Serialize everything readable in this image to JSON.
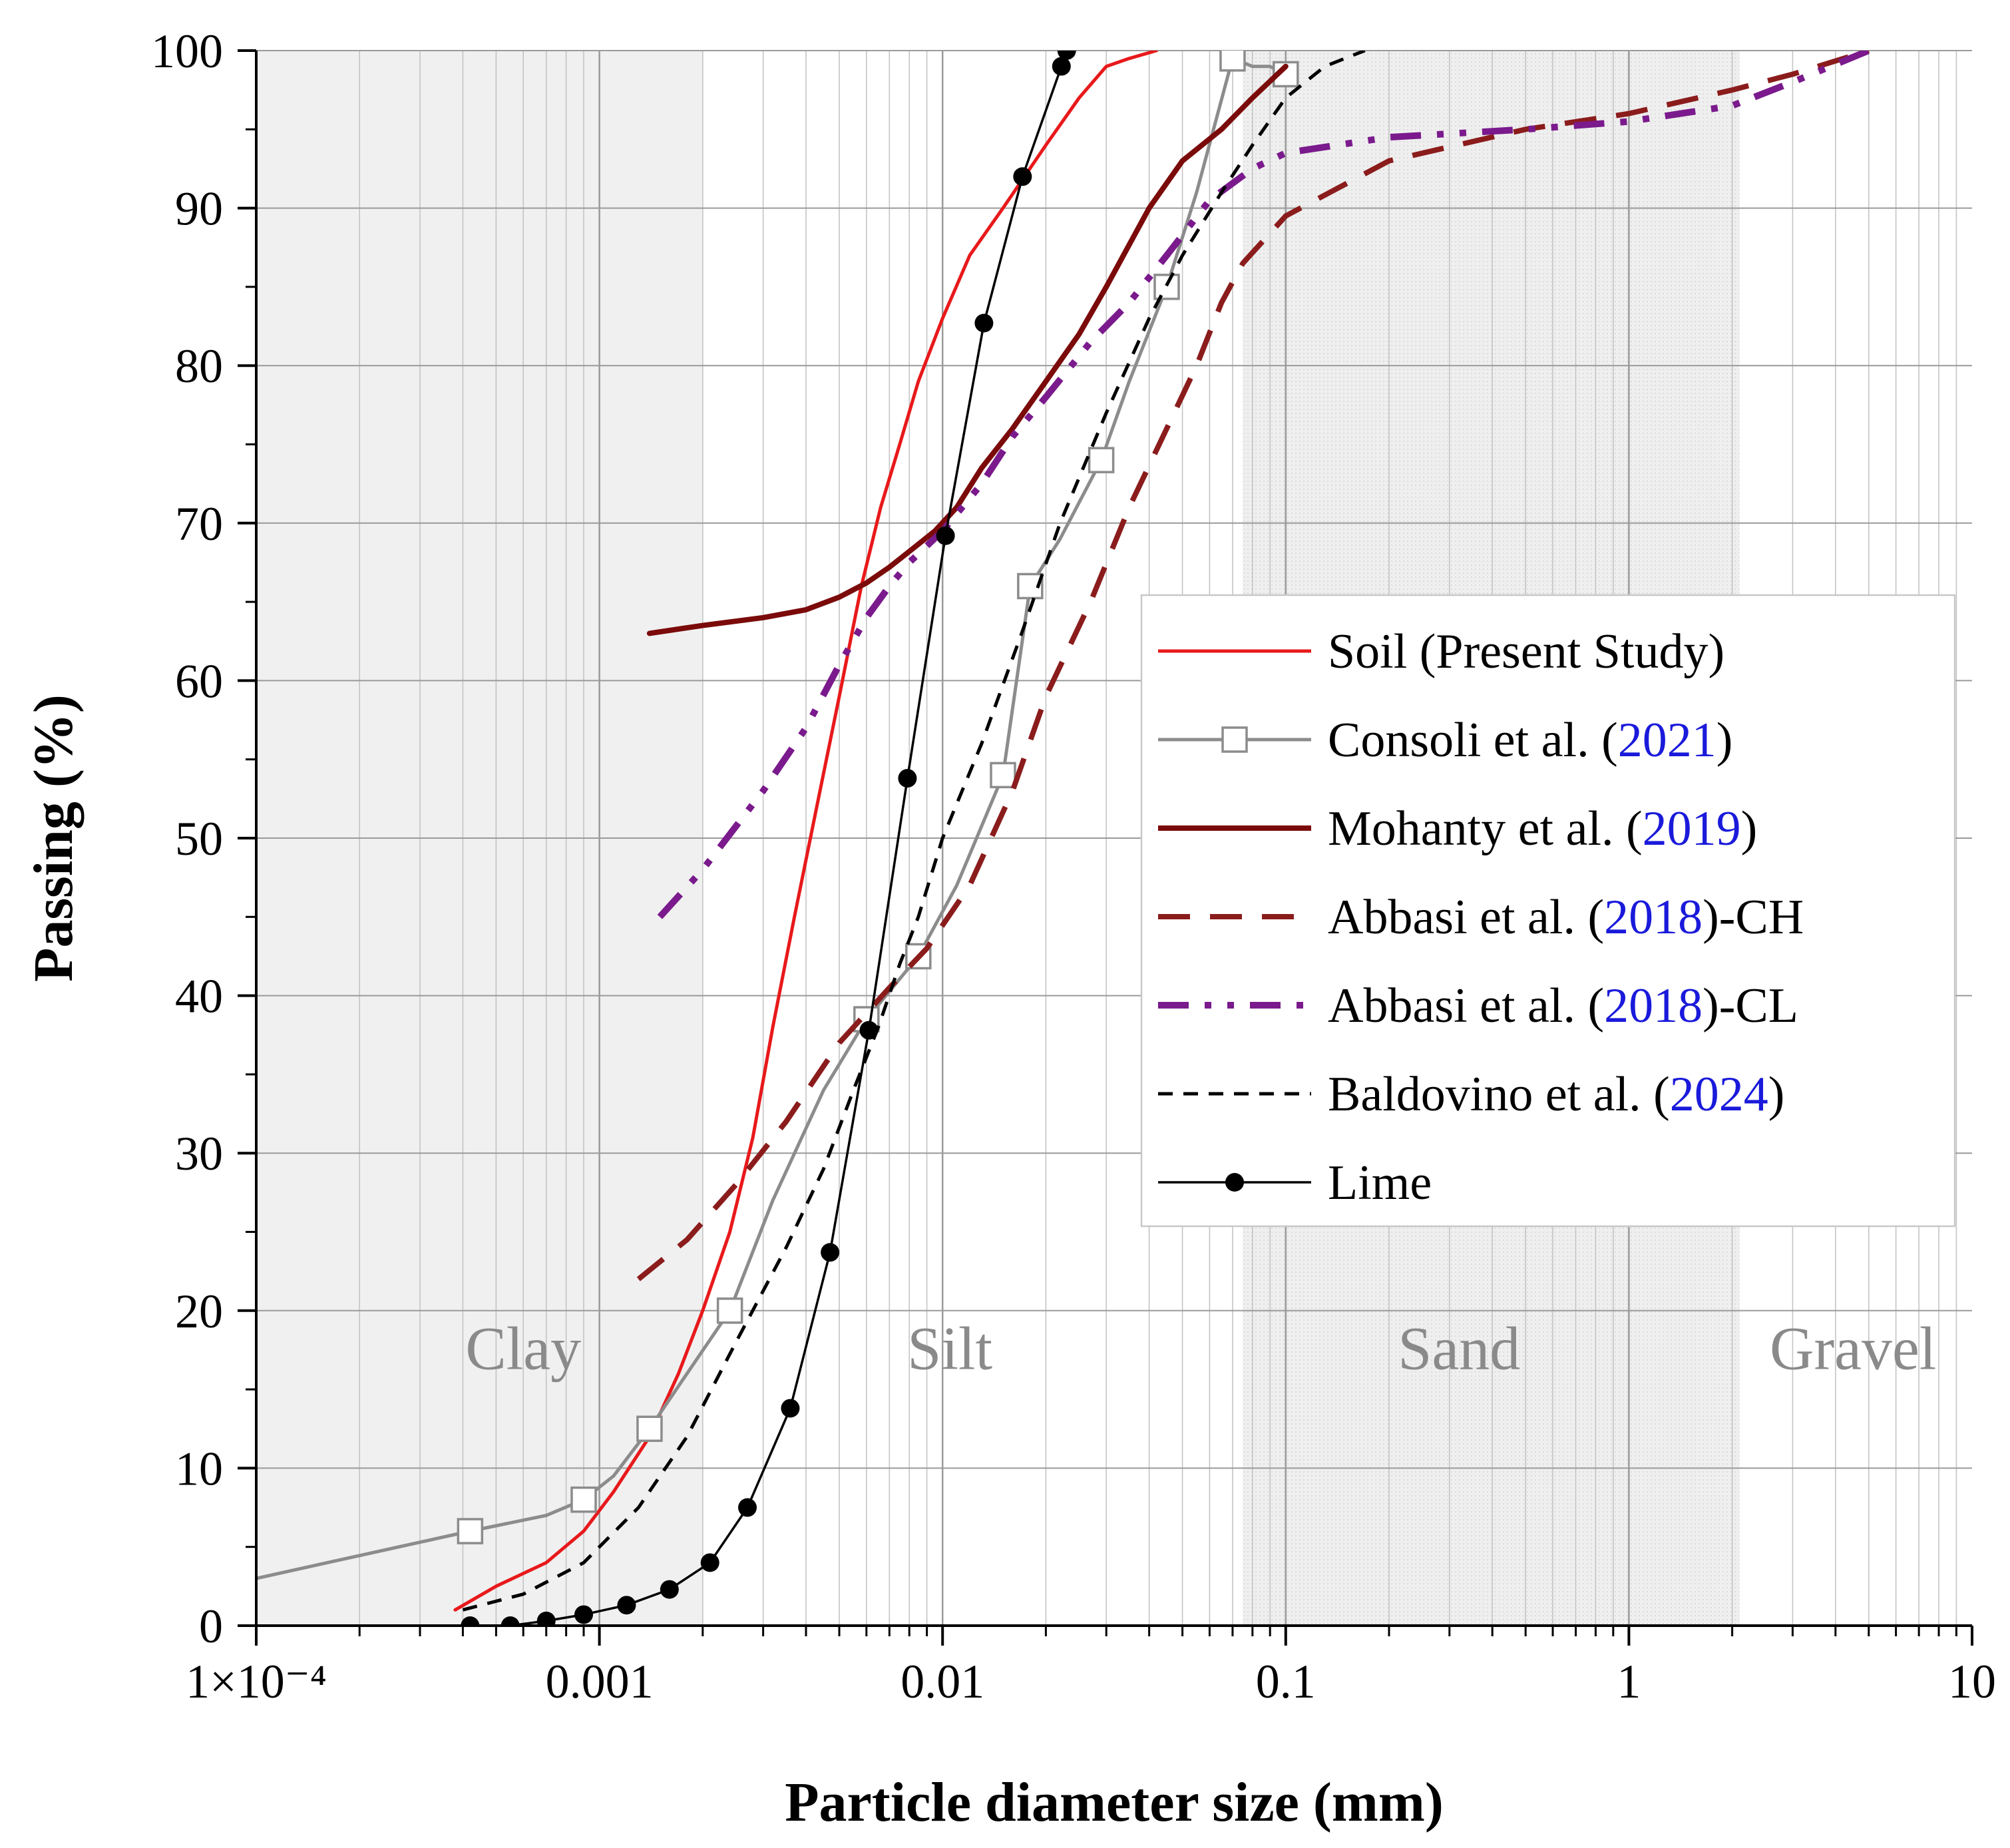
{
  "chart_data": {
    "type": "line",
    "xscale": "log",
    "xlabel": "Particle diameter size (mm)",
    "ylabel": "Passing (%)",
    "xlim": [
      0.0001,
      10
    ],
    "ylim": [
      0,
      100
    ],
    "xticks": [
      {
        "value": 0.0001,
        "label": "1×10⁻⁴"
      },
      {
        "value": 0.001,
        "label": "0.001"
      },
      {
        "value": 0.01,
        "label": "0.01"
      },
      {
        "value": 0.1,
        "label": "0.1"
      },
      {
        "value": 1,
        "label": "1"
      },
      {
        "value": 10,
        "label": "10"
      }
    ],
    "yticks": [
      0,
      10,
      20,
      30,
      40,
      50,
      60,
      70,
      80,
      90,
      100
    ],
    "grid": true,
    "zones": [
      {
        "name": "Clay",
        "from": 0.0001,
        "to": 0.002,
        "shaded": true,
        "label_at": 0.0006
      },
      {
        "name": "Silt",
        "from": 0.002,
        "to": 0.075,
        "shaded": false,
        "label_at": 0.0105
      },
      {
        "name": "Sand",
        "from": 0.075,
        "to": 2.1,
        "shaded": true,
        "label_at": 0.32
      },
      {
        "name": "Gravel",
        "from": 2.1,
        "to": 10,
        "shaded": false,
        "label_at": 4.5
      }
    ],
    "series": [
      {
        "name": "Soil (Present Study)",
        "label_pre": "Soil (Present Study)",
        "label_year": "",
        "label_post": "",
        "color": "#e8191b",
        "style": "solid",
        "width": 5,
        "marker": "none",
        "x": [
          0.00038,
          0.0005,
          0.0007,
          0.0009,
          0.0011,
          0.0014,
          0.0017,
          0.002,
          0.0024,
          0.0028,
          0.0032,
          0.0037,
          0.0043,
          0.005,
          0.0058,
          0.0066,
          0.0075,
          0.0085,
          0.01,
          0.012,
          0.015,
          0.02,
          0.025,
          0.03,
          0.035,
          0.042
        ],
        "y": [
          1,
          2.5,
          4,
          6,
          8.5,
          12,
          16,
          20,
          25,
          31,
          38,
          45,
          52,
          59,
          66,
          71,
          75,
          79,
          83,
          87,
          90,
          94,
          97,
          99,
          99.5,
          100
        ]
      },
      {
        "name": "Consoli et al. (2021)",
        "label_pre": "Consoli et al. (",
        "label_year": "2021",
        "label_post": ")",
        "color": "#8c8c8c",
        "style": "solid",
        "width": 5,
        "marker": "open-square",
        "x": [
          0.0001,
          0.00042,
          0.0007,
          0.0009,
          0.0011,
          0.0014,
          0.0018,
          0.0024,
          0.0032,
          0.0045,
          0.006,
          0.0085,
          0.011,
          0.015,
          0.018,
          0.022,
          0.029,
          0.035,
          0.045,
          0.055,
          0.07,
          0.08,
          0.09,
          0.1
        ],
        "y": [
          3,
          6,
          7,
          8,
          9.5,
          12.5,
          16,
          20,
          27,
          34,
          38.5,
          42.5,
          47,
          54,
          66,
          69,
          74,
          79,
          85,
          91,
          99.5,
          99,
          99,
          98.5
        ],
        "markers_x": [
          0.00042,
          0.0009,
          0.0014,
          0.0024,
          0.006,
          0.0085,
          0.015,
          0.018,
          0.029,
          0.045,
          0.07,
          0.1
        ],
        "markers_y": [
          6,
          8,
          12.5,
          20,
          38.5,
          42.5,
          54,
          66,
          74,
          85,
          99.5,
          98.5
        ]
      },
      {
        "name": "Mohanty et al. (2019)",
        "label_pre": "Mohanty et al. (",
        "label_year": "2019",
        "label_post": ")",
        "color": "#7b0a0a",
        "style": "solid",
        "width": 8,
        "marker": "none",
        "x": [
          0.0014,
          0.002,
          0.003,
          0.004,
          0.005,
          0.006,
          0.007,
          0.008,
          0.0095,
          0.011,
          0.013,
          0.016,
          0.02,
          0.025,
          0.03,
          0.04,
          0.05,
          0.065,
          0.08,
          0.1
        ],
        "y": [
          63,
          63.5,
          64,
          64.5,
          65.3,
          66.2,
          67.2,
          68.2,
          69.5,
          71,
          73.5,
          76,
          79,
          82,
          85,
          90,
          93,
          95,
          97,
          99
        ]
      },
      {
        "name": "Abbasi et al. (2018)-CH",
        "label_pre": "Abbasi et al. (",
        "label_year": "2018",
        "label_post": ")-CH",
        "color": "#8b1c1c",
        "style": "long-dash",
        "width": 8,
        "marker": "none",
        "x": [
          0.0013,
          0.0018,
          0.0025,
          0.0035,
          0.005,
          0.007,
          0.009,
          0.012,
          0.016,
          0.02,
          0.027,
          0.035,
          0.045,
          0.055,
          0.065,
          0.075,
          0.1,
          0.2,
          0.5,
          1,
          2,
          3,
          5
        ],
        "y": [
          22,
          24.5,
          28,
          32,
          37,
          40.5,
          43,
          47,
          53,
          59,
          65,
          71,
          76,
          80,
          84,
          86.5,
          89.5,
          93,
          95,
          96,
          97.5,
          98.5,
          100
        ]
      },
      {
        "name": "Abbasi et al. (2018)-CL",
        "label_pre": "Abbasi et al. (",
        "label_year": "2018",
        "label_post": ")-CL",
        "color": "#7a1a8c",
        "style": "dash-dot-dot",
        "width": 10,
        "marker": "none",
        "x": [
          0.0015,
          0.002,
          0.003,
          0.004,
          0.005,
          0.006,
          0.007,
          0.008,
          0.01,
          0.013,
          0.016,
          0.02,
          0.027,
          0.035,
          0.045,
          0.06,
          0.08,
          0.1,
          0.2,
          0.5,
          1,
          2,
          3,
          5
        ],
        "y": [
          45,
          48,
          53,
          57,
          61,
          64,
          66,
          67.5,
          69.5,
          72.5,
          75.5,
          78,
          81.5,
          84,
          87,
          90.5,
          92.5,
          93.5,
          94.5,
          95,
          95.5,
          96.5,
          98,
          100
        ]
      },
      {
        "name": "Baldovino et al. (2024)",
        "label_pre": "Baldovino et al. (",
        "label_year": "2024",
        "label_post": ")",
        "color": "#000000",
        "style": "short-dash",
        "width": 5,
        "marker": "none",
        "x": [
          0.0004,
          0.0006,
          0.0009,
          0.0013,
          0.0018,
          0.0025,
          0.0035,
          0.0045,
          0.0055,
          0.0065,
          0.0075,
          0.0085,
          0.01,
          0.013,
          0.017,
          0.022,
          0.03,
          0.04,
          0.05,
          0.065,
          0.08,
          0.1,
          0.13,
          0.17
        ],
        "y": [
          1,
          2,
          4,
          7.5,
          12,
          18,
          24,
          29,
          34,
          38,
          42,
          45,
          50,
          56,
          63,
          70,
          77,
          83,
          87,
          91,
          94,
          97,
          99,
          100
        ]
      },
      {
        "name": "Lime",
        "label_pre": "Lime",
        "label_year": "",
        "label_post": "",
        "color": "#000000",
        "style": "solid",
        "width": 3.5,
        "marker": "filled-circle",
        "x": [
          0.00042,
          0.00055,
          0.0007,
          0.0009,
          0.0012,
          0.0016,
          0.0021,
          0.0027,
          0.0036,
          0.0047,
          0.0061,
          0.0079,
          0.0102,
          0.0132,
          0.0171,
          0.0222,
          0.023
        ],
        "y": [
          0,
          0,
          0.3,
          0.7,
          1.3,
          2.3,
          4,
          7.5,
          13.8,
          23.7,
          37.8,
          53.8,
          69.2,
          82.7,
          92,
          99,
          100
        ]
      }
    ]
  }
}
